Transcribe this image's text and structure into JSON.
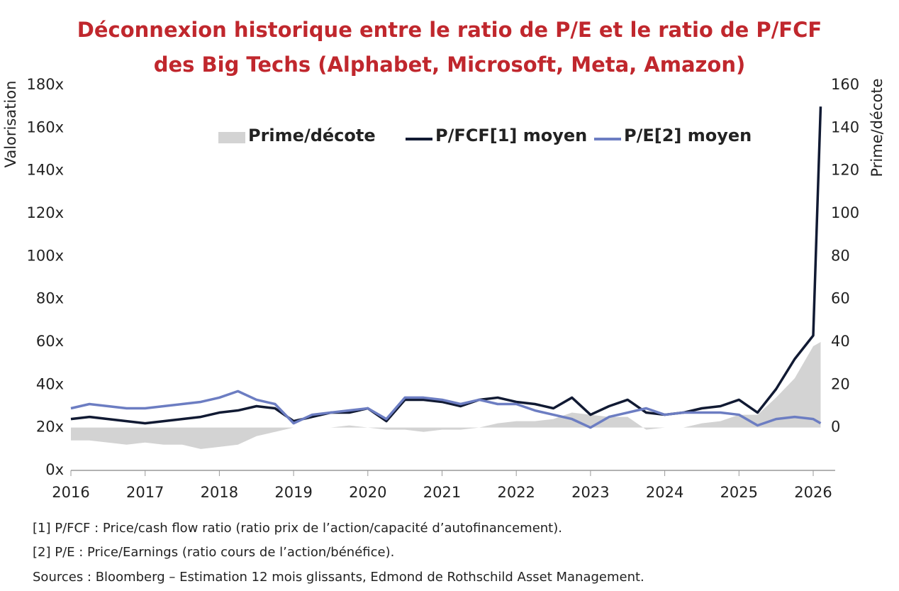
{
  "chart_data": {
    "type": "line",
    "title": [
      "Déconnexion historique entre le ratio de P/E et le ratio de P/FCF",
      "des Big Techs (Alphabet, Microsoft, Meta, Amazon)"
    ],
    "ylabel": "Valorisation",
    "y2label": "Prime/décote",
    "x": [
      2016,
      2016.25,
      2016.5,
      2016.75,
      2017,
      2017.25,
      2017.5,
      2017.75,
      2018,
      2018.25,
      2018.5,
      2018.75,
      2019,
      2019.25,
      2019.5,
      2019.75,
      2020,
      2020.25,
      2020.5,
      2020.75,
      2021,
      2021.25,
      2021.5,
      2021.75,
      2022,
      2022.25,
      2022.5,
      2022.75,
      2023,
      2023.25,
      2023.5,
      2023.75,
      2024,
      2024.25,
      2024.5,
      2024.75,
      2025,
      2025.25,
      2025.5,
      2025.75,
      2026,
      2026.1
    ],
    "xlim": [
      2016,
      2026.2
    ],
    "xticks": [
      2016,
      2017,
      2018,
      2019,
      2020,
      2021,
      2022,
      2023,
      2024,
      2025,
      2026
    ],
    "ylim": [
      0,
      180
    ],
    "yticks": [
      {
        "value": 0,
        "label": "0x"
      },
      {
        "value": 20,
        "label": "20x"
      },
      {
        "value": 40,
        "label": "40x"
      },
      {
        "value": 60,
        "label": "60x"
      },
      {
        "value": 80,
        "label": "80x"
      },
      {
        "value": 100,
        "label": "100x"
      },
      {
        "value": 120,
        "label": "120x"
      },
      {
        "value": 140,
        "label": "140x"
      },
      {
        "value": 160,
        "label": "160x"
      },
      {
        "value": 180,
        "label": "180x"
      }
    ],
    "y2lim": [
      -20,
      160
    ],
    "y2ticks": [
      0,
      20,
      40,
      60,
      80,
      100,
      120,
      140,
      160
    ],
    "series": [
      {
        "name": "Prime/décote",
        "color": "#d3d3d3",
        "axis": "y2",
        "kind": "area",
        "values": [
          -6,
          -6,
          -7,
          -8,
          -7,
          -8,
          -8,
          -10,
          -9,
          -8,
          -4,
          -2,
          0,
          0,
          0,
          1,
          0,
          -1,
          -1,
          -2,
          -1,
          -1,
          0,
          2,
          3,
          3,
          4,
          7,
          6,
          5,
          5,
          -1,
          0,
          0,
          2,
          3,
          6,
          6,
          14,
          23,
          38,
          40
        ]
      },
      {
        "name": "P/FCF[1] moyen",
        "color": "#111a33",
        "values": [
          24,
          25,
          24,
          23,
          22,
          23,
          24,
          25,
          27,
          28,
          30,
          29,
          23,
          25,
          27,
          27,
          29,
          23,
          33,
          33,
          32,
          30,
          33,
          34,
          32,
          31,
          29,
          34,
          26,
          30,
          33,
          27,
          26,
          27,
          29,
          30,
          33,
          27,
          38,
          52,
          63,
          170
        ]
      },
      {
        "name": "P/E[2] moyen",
        "color": "#6c7dc2",
        "values": [
          29,
          31,
          30,
          29,
          29,
          30,
          31,
          32,
          34,
          37,
          33,
          31,
          22,
          26,
          27,
          28,
          29,
          24,
          34,
          34,
          33,
          31,
          33,
          31,
          31,
          28,
          26,
          24,
          20,
          25,
          27,
          29,
          26,
          27,
          27,
          27,
          26,
          21,
          24,
          25,
          24,
          22
        ]
      }
    ],
    "notes": [
      "[1] P/FCF : Price/cash flow ratio (ratio prix de l’action/capacité d’autofinancement).",
      "[2] P/E : Price/Earnings (ratio cours de l’action/bénéfice).",
      "Sources : Bloomberg – Estimation 12 mois glissants, Edmond de Rothschild Asset Management."
    ]
  }
}
